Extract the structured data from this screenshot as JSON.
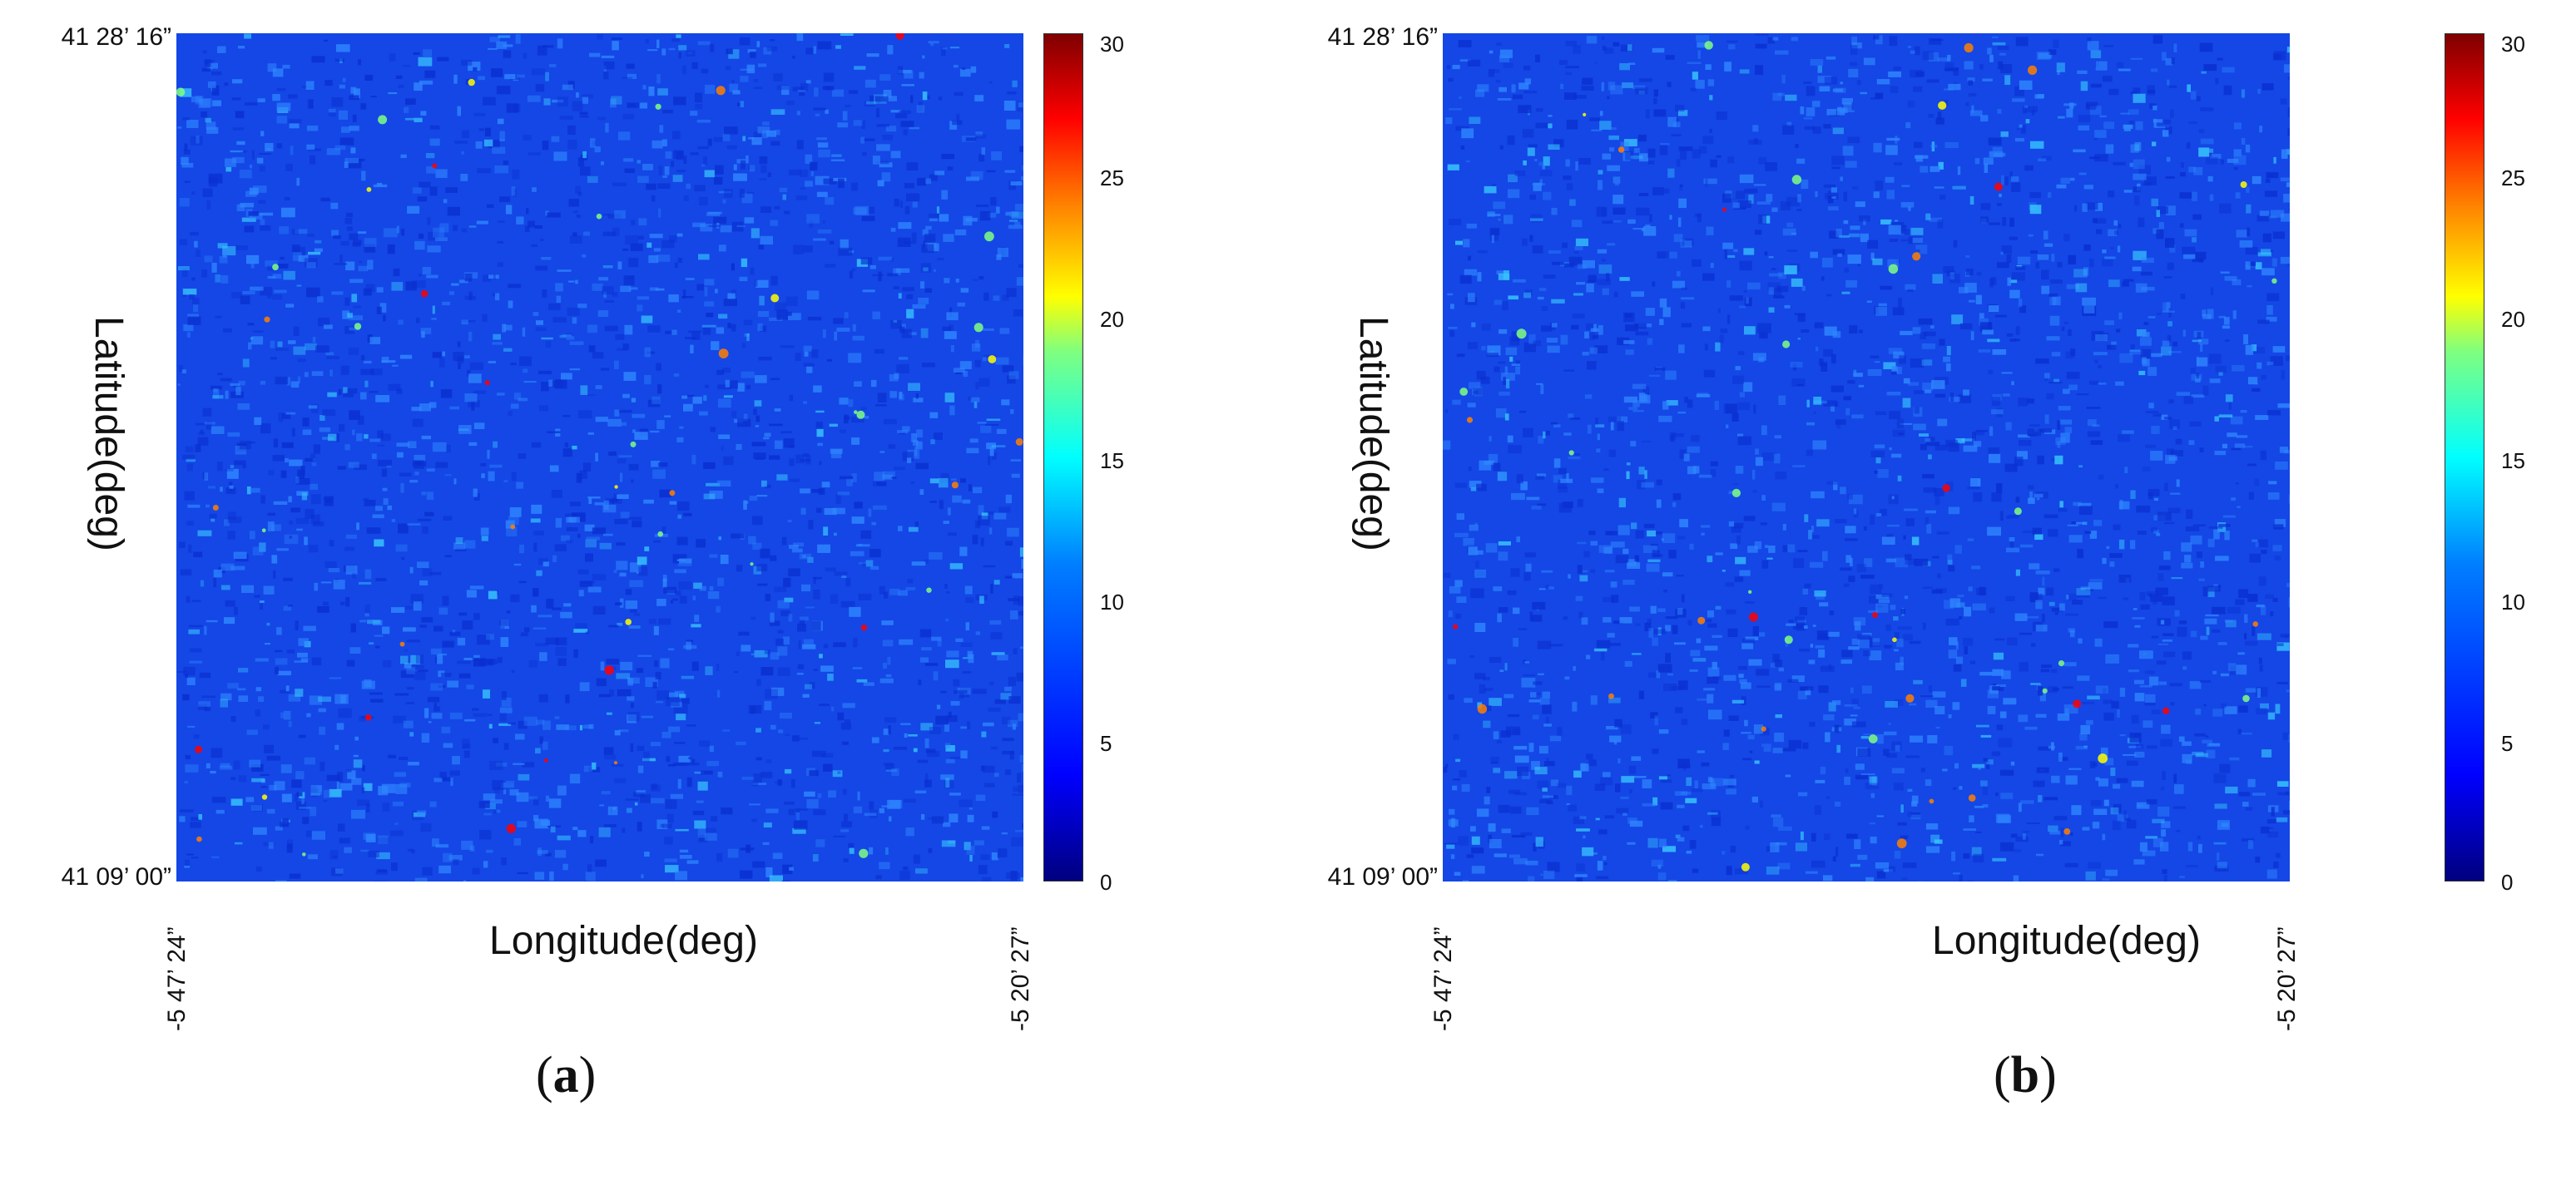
{
  "panels": [
    {
      "id": "a",
      "label_open": "(",
      "label_letter": "a",
      "label_close": ")",
      "xlabel": "Longitude(deg)",
      "ylabel": "Latitude(deg)",
      "lat_top": "41 28’ 16”",
      "lat_bottom": "41 09’ 00”",
      "lon_left": "-5 47’ 24”",
      "lon_right": "-5 20’ 27”",
      "colorbar_ticks": [
        "30",
        "25",
        "20",
        "15",
        "10",
        "5",
        "0"
      ]
    },
    {
      "id": "b",
      "label_open": "(",
      "label_letter": "b",
      "label_close": ")",
      "xlabel": "Longitude(deg)",
      "ylabel": "Latitude(deg)",
      "lat_top": "41 28’ 16”",
      "lat_bottom": "41 09’ 00”",
      "lon_left": "-5 47’ 24”",
      "lon_right": "-5 20’ 27”",
      "colorbar_ticks": [
        "30",
        "25",
        "20",
        "15",
        "10",
        "5",
        "0"
      ]
    }
  ],
  "colorbar": {
    "min": 0,
    "max": 30,
    "colormap": "jet"
  },
  "colors": {
    "base": "#1447e6",
    "deep": "#0a2fd0",
    "light": "#2f86ff"
  }
}
